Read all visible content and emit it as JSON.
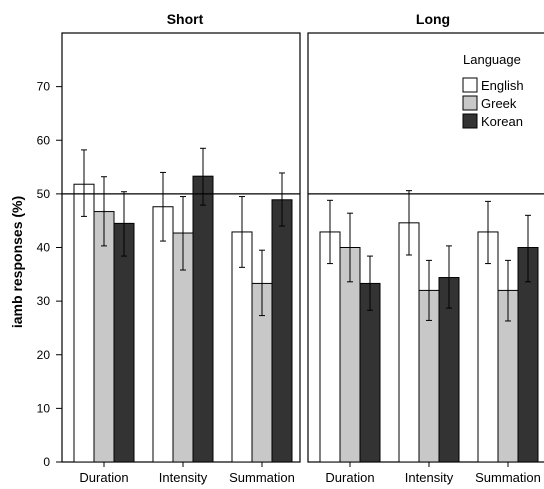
{
  "chart_data": {
    "type": "bar",
    "ylabel": "iamb responses (%)",
    "ylim": [
      0,
      80
    ],
    "yticks": [
      0,
      10,
      20,
      30,
      40,
      50,
      60,
      70
    ],
    "reference_line": 50,
    "categories": [
      "Duration",
      "Intensity",
      "Summation"
    ],
    "legend": {
      "title": "Language",
      "placement": "top-right",
      "entries": [
        "English",
        "Greek",
        "Korean"
      ]
    },
    "colors": {
      "English": "#ffffff",
      "Greek": "#c8c8c8",
      "Korean": "#333333"
    },
    "panels": [
      {
        "title": "Short",
        "series": [
          {
            "name": "English",
            "values": [
              51.8,
              47.6,
              42.9
            ],
            "error": [
              [
                45.8,
                58.2
              ],
              [
                41.2,
                54.0
              ],
              [
                36.3,
                49.5
              ]
            ]
          },
          {
            "name": "Greek",
            "values": [
              46.7,
              42.7,
              33.3
            ],
            "error": [
              [
                40.3,
                53.2
              ],
              [
                35.8,
                49.5
              ],
              [
                27.3,
                39.5
              ]
            ]
          },
          {
            "name": "Korean",
            "values": [
              44.5,
              53.3,
              48.9
            ],
            "error": [
              [
                38.4,
                50.4
              ],
              [
                47.9,
                58.5
              ],
              [
                44.0,
                53.9
              ]
            ]
          }
        ]
      },
      {
        "title": "Long",
        "series": [
          {
            "name": "English",
            "values": [
              42.9,
              44.6,
              42.9
            ],
            "error": [
              [
                37.0,
                48.8
              ],
              [
                38.6,
                50.6
              ],
              [
                37.0,
                48.6
              ]
            ]
          },
          {
            "name": "Greek",
            "values": [
              40.0,
              32.0,
              32.0
            ],
            "error": [
              [
                33.6,
                46.4
              ],
              [
                26.4,
                37.6
              ],
              [
                26.3,
                37.6
              ]
            ]
          },
          {
            "name": "Korean",
            "values": [
              33.3,
              34.4,
              40.0
            ],
            "error": [
              [
                28.3,
                38.4
              ],
              [
                28.7,
                40.3
              ],
              [
                33.6,
                46.0
              ]
            ]
          }
        ]
      }
    ]
  }
}
